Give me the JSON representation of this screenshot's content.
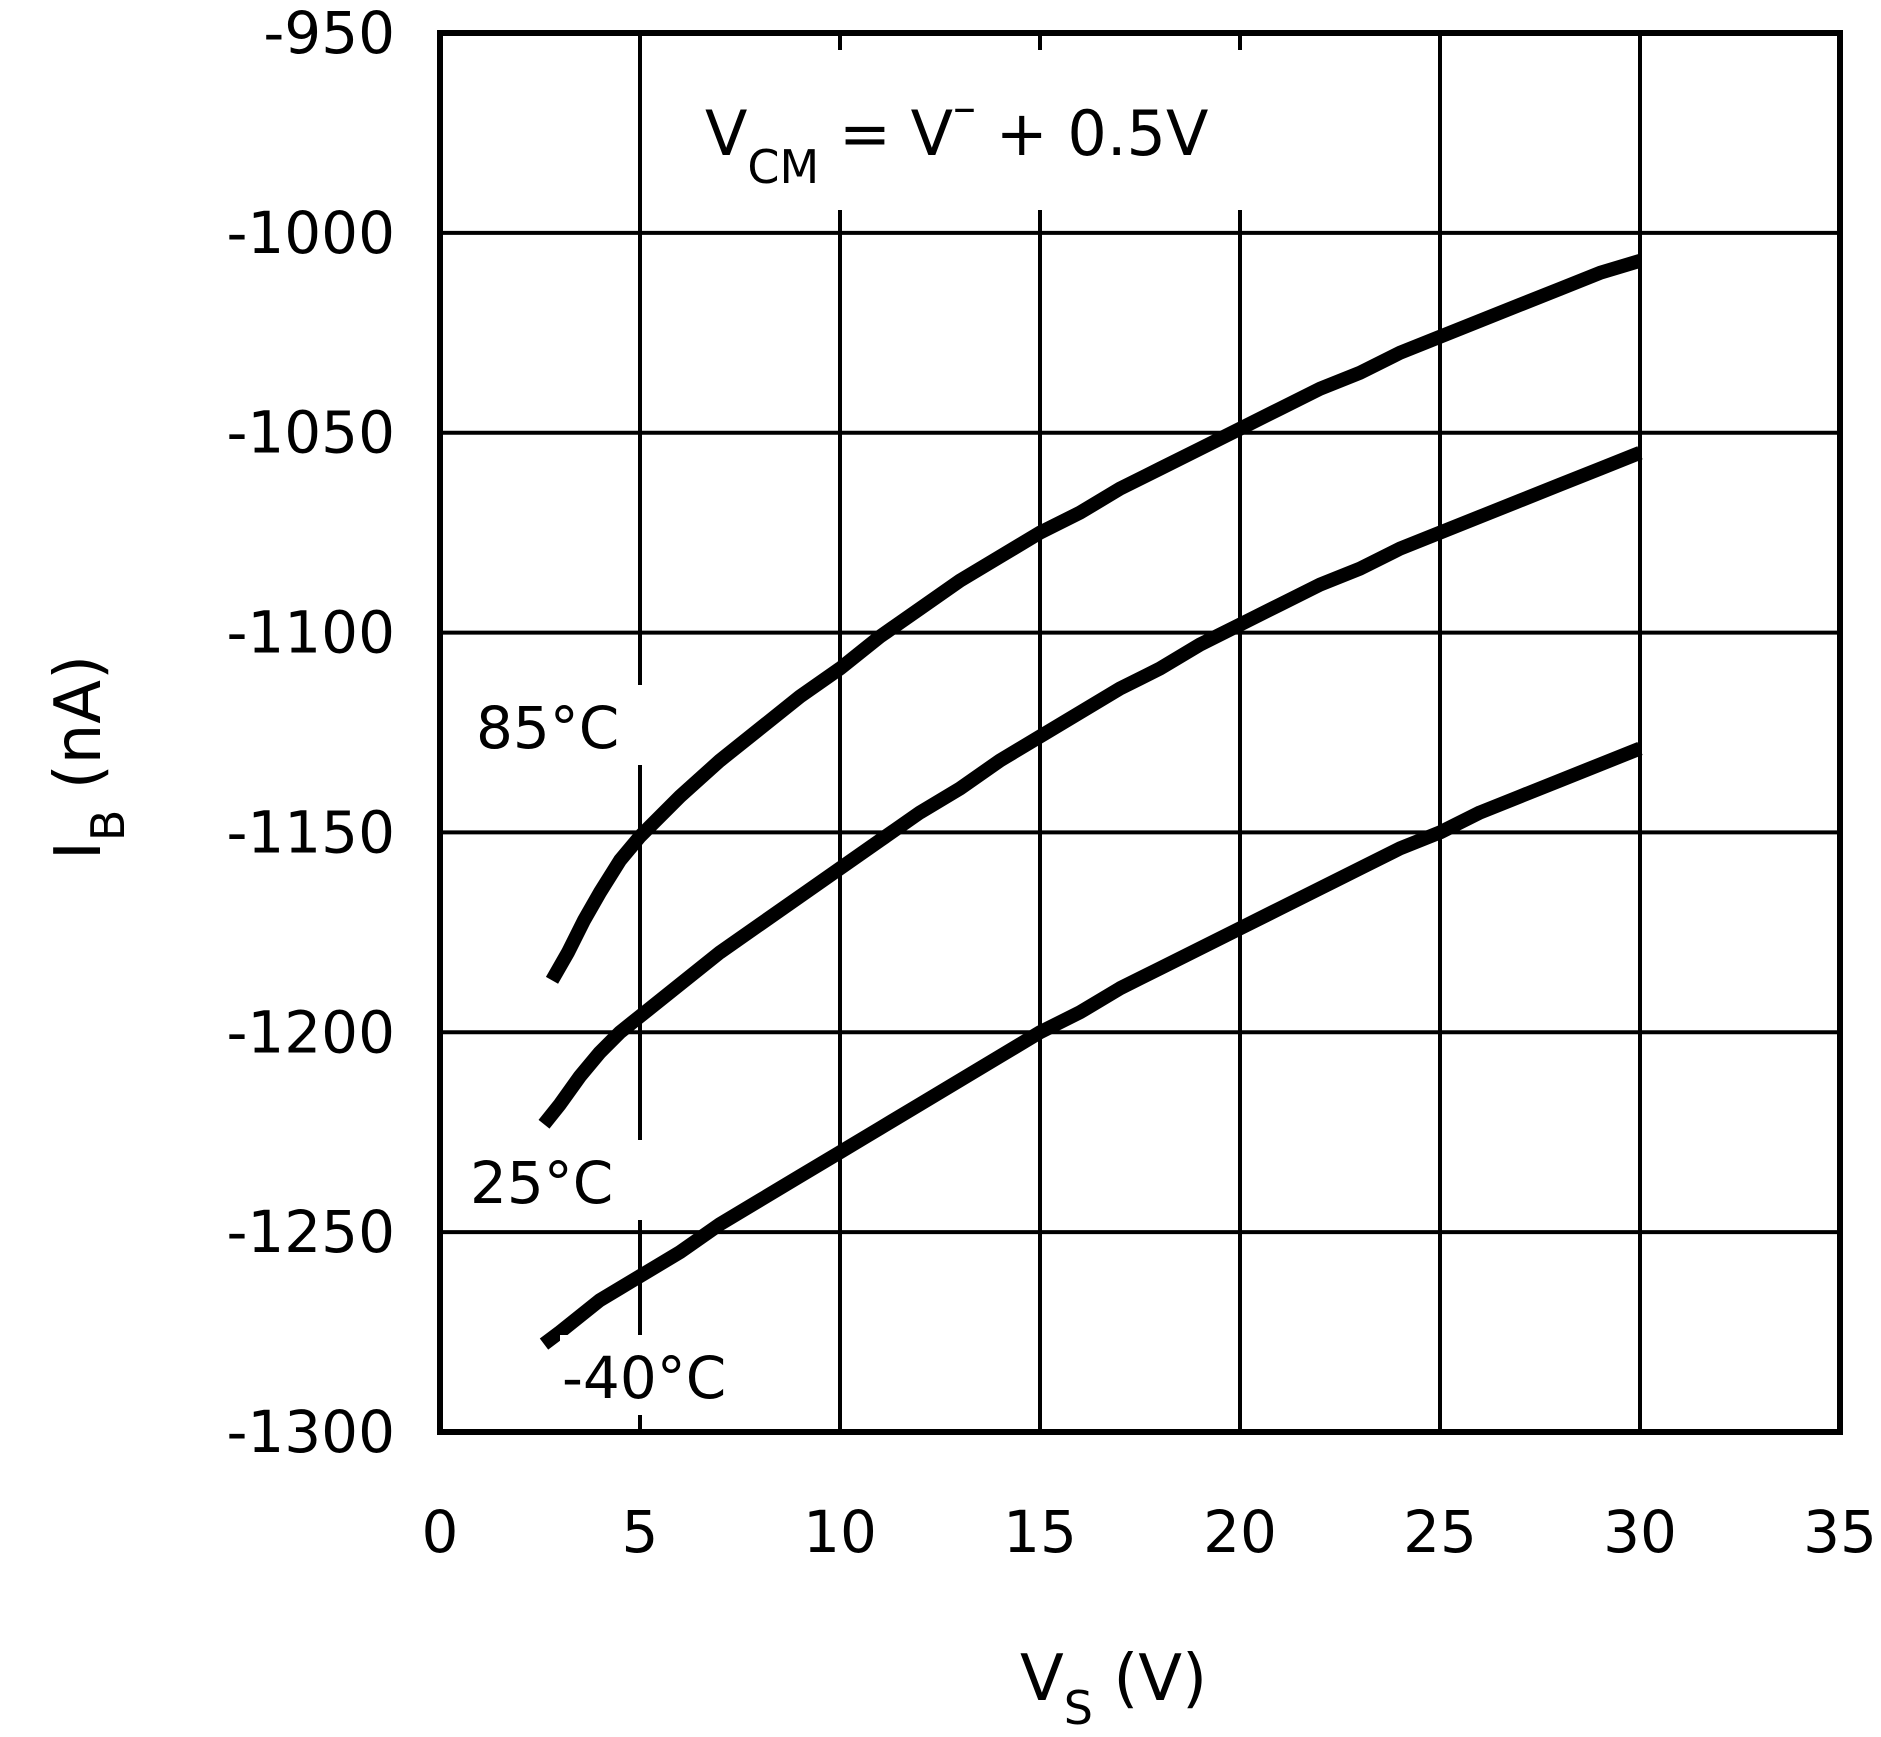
{
  "chart_data": {
    "type": "line",
    "annotation": {
      "main": "V",
      "sub": "CM",
      "rest": " = V",
      "sup": "–",
      "tail": " + 0.5V"
    },
    "xlabel": {
      "main": "V",
      "sub": "S",
      "unit": " (V)"
    },
    "ylabel": {
      "main": "I",
      "sub": "B",
      "unit": " (nA)"
    },
    "xlim": [
      0,
      35
    ],
    "ylim": [
      -1300,
      -950
    ],
    "xticks": [
      0,
      5,
      10,
      15,
      20,
      25,
      30,
      35
    ],
    "yticks": [
      -950,
      -1000,
      -1050,
      -1100,
      -1150,
      -1200,
      -1250,
      -1300
    ],
    "xtick_labels": [
      "0",
      "5",
      "10",
      "15",
      "20",
      "25",
      "30",
      "35"
    ],
    "ytick_labels": [
      "-950",
      "-1000",
      "-1050",
      "-1100",
      "-1150",
      "-1200",
      "-1250",
      "-1300"
    ],
    "grid": true,
    "series": [
      {
        "name": "85°C",
        "x": [
          2.8,
          3.2,
          3.6,
          4.0,
          4.5,
          5.0,
          5.5,
          6.0,
          7.0,
          8.0,
          9.0,
          10.0,
          11.0,
          12.0,
          13.0,
          14.0,
          15.0,
          16.0,
          17.0,
          18.0,
          19.0,
          20.0,
          21.0,
          22.0,
          23.0,
          24.0,
          25.0,
          26.0,
          27.0,
          28.0,
          29.0,
          30.0
        ],
        "y": [
          -1187,
          -1180,
          -1172,
          -1165,
          -1157,
          -1151,
          -1146,
          -1141,
          -1132,
          -1124,
          -1116,
          -1109,
          -1101,
          -1094,
          -1087,
          -1081,
          -1075,
          -1070,
          -1064,
          -1059,
          -1054,
          -1049,
          -1044,
          -1039,
          -1035,
          -1030,
          -1026,
          -1022,
          -1018,
          -1014,
          -1010,
          -1007
        ]
      },
      {
        "name": "25°C",
        "x": [
          2.6,
          3.0,
          3.5,
          4.0,
          4.5,
          5.0,
          6.0,
          7.0,
          8.0,
          9.0,
          10.0,
          11.0,
          12.0,
          13.0,
          14.0,
          15.0,
          16.0,
          17.0,
          18.0,
          19.0,
          20.0,
          21.0,
          22.0,
          23.0,
          24.0,
          25.0,
          26.0,
          27.0,
          28.0,
          29.0,
          30.0
        ],
        "y": [
          -1223,
          -1218,
          -1211,
          -1205,
          -1200,
          -1196,
          -1188,
          -1180,
          -1173,
          -1166,
          -1159,
          -1152,
          -1145,
          -1139,
          -1132,
          -1126,
          -1120,
          -1114,
          -1109,
          -1103,
          -1098,
          -1093,
          -1088,
          -1084,
          -1079,
          -1075,
          -1071,
          -1067,
          -1063,
          -1059,
          -1055
        ]
      },
      {
        "name": "-40°C",
        "x": [
          2.6,
          3.0,
          3.5,
          4.0,
          4.5,
          5.0,
          6.0,
          7.0,
          8.0,
          9.0,
          10.0,
          11.0,
          12.0,
          13.0,
          14.0,
          15.0,
          16.0,
          17.0,
          18.0,
          19.0,
          20.0,
          21.0,
          22.0,
          23.0,
          24.0,
          25.0,
          26.0,
          27.0,
          28.0,
          29.0,
          30.0
        ],
        "y": [
          -1278,
          -1275,
          -1271,
          -1267,
          -1264,
          -1261,
          -1255,
          -1248,
          -1242,
          -1236,
          -1230,
          -1224,
          -1218,
          -1212,
          -1206,
          -1200,
          -1195,
          -1189,
          -1184,
          -1179,
          -1174,
          -1169,
          -1164,
          -1159,
          -1154,
          -1150,
          -1145,
          -1141,
          -1137,
          -1133,
          -1129
        ]
      }
    ]
  }
}
